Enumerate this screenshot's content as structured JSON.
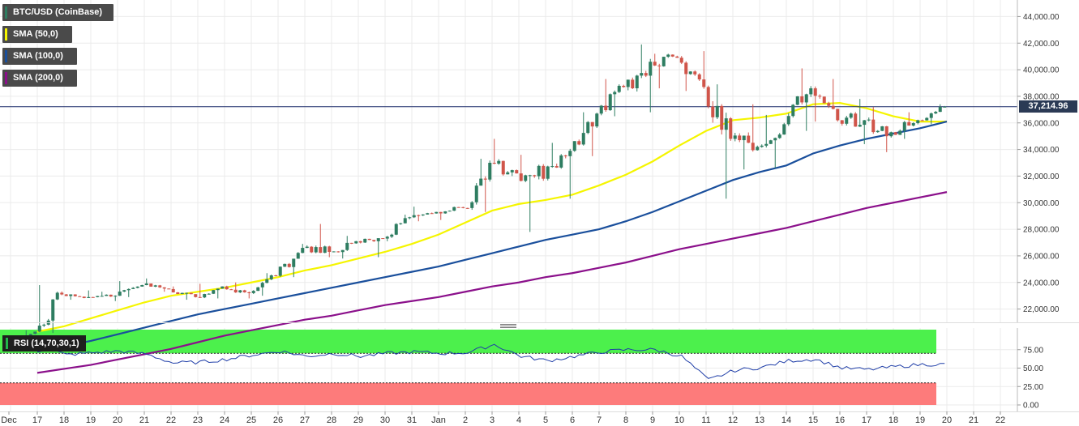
{
  "legend": {
    "main": {
      "label": "BTC/USD (CoinBase)",
      "color": "#2e7d61"
    },
    "sma50": {
      "label": "SMA (50,0)",
      "color": "#f5f500"
    },
    "sma100": {
      "label": "SMA (100,0)",
      "color": "#1a4f9c"
    },
    "sma200": {
      "label": "SMA (200,0)",
      "color": "#8b108b"
    },
    "rsi": {
      "label": "RSI (14,70,30,1)",
      "color": "#21b44a"
    }
  },
  "price_tag": "37,214.96",
  "colors": {
    "up": "#2e7d61",
    "down": "#d0554a",
    "rsi_line": "#1f3ea8",
    "overbought": "#4cf04c",
    "oversold": "#fd7b7b",
    "price_line": "#1f2f6b"
  },
  "chart_data": [
    {
      "type": "candlestick",
      "title": "BTC/USD (CoinBase)",
      "ylim": [
        21000,
        45000
      ],
      "y_ticks": [
        "22,000.00",
        "24,000.00",
        "26,000.00",
        "28,000.00",
        "30,000.00",
        "32,000.00",
        "34,000.00",
        "36,000.00",
        "38,000.00",
        "40,000.00",
        "42,000.00",
        "44,000.00"
      ],
      "x_ticks": [
        "Dec",
        "17",
        "18",
        "19",
        "20",
        "21",
        "22",
        "23",
        "24",
        "25",
        "26",
        "27",
        "28",
        "29",
        "30",
        "31",
        "Jan",
        "2",
        "3",
        "4",
        "5",
        "6",
        "7",
        "8",
        "9",
        "10",
        "11",
        "12",
        "13",
        "14",
        "15",
        "16",
        "17",
        "18",
        "19",
        "20",
        "21",
        "22"
      ],
      "last_price": 37214.96,
      "candles_per_day": 6,
      "daily_ohlc": [
        [
          19400,
          20400,
          19300,
          20300
        ],
        [
          20300,
          23800,
          20200,
          23100
        ],
        [
          23100,
          23400,
          22700,
          22900
        ],
        [
          22900,
          23300,
          22600,
          23000
        ],
        [
          23000,
          24100,
          22900,
          23800
        ],
        [
          23800,
          24300,
          23300,
          23500
        ],
        [
          23500,
          23700,
          22700,
          22900
        ],
        [
          22900,
          23900,
          22800,
          23700
        ],
        [
          23700,
          24000,
          22800,
          23200
        ],
        [
          23200,
          24700,
          23000,
          24500
        ],
        [
          24500,
          26900,
          24400,
          26600
        ],
        [
          26600,
          28400,
          25900,
          26300
        ],
        [
          26300,
          27500,
          25800,
          27100
        ],
        [
          27100,
          27300,
          25900,
          27300
        ],
        [
          27300,
          29100,
          27100,
          28900
        ],
        [
          28900,
          29700,
          28600,
          29300
        ],
        [
          29300,
          29700,
          28700,
          29600
        ],
        [
          29600,
          33300,
          29300,
          33000
        ],
        [
          33000,
          34800,
          32000,
          32200
        ],
        [
          32200,
          33600,
          27800,
          31800
        ],
        [
          31800,
          34500,
          30300,
          33900
        ],
        [
          33900,
          36800,
          33500,
          36700
        ],
        [
          36700,
          39300,
          36500,
          38700
        ],
        [
          38700,
          41900,
          36800,
          40600
        ],
        [
          40600,
          41200,
          38600,
          40900
        ],
        [
          40900,
          41400,
          38400,
          38700
        ],
        [
          38700,
          38900,
          30300,
          34800
        ],
        [
          34800,
          37400,
          32500,
          34200
        ],
        [
          34200,
          36600,
          32600,
          35900
        ],
        [
          35900,
          40100,
          35400,
          38600
        ],
        [
          38600,
          39300,
          36100,
          36200
        ],
        [
          36200,
          37800,
          34400,
          36200
        ],
        [
          36200,
          37200,
          33800,
          35300
        ],
        [
          35300,
          36800,
          34800,
          36200
        ],
        [
          36200,
          37400,
          35900,
          37215
        ]
      ],
      "sma_series": [
        {
          "name": "SMA (50,0)",
          "values": [
            20300,
            20700,
            21300,
            21900,
            22500,
            23000,
            23300,
            23600,
            24000,
            24400,
            24900,
            25300,
            25800,
            26300,
            26900,
            27600,
            28500,
            29400,
            29900,
            30200,
            30600,
            31300,
            32100,
            33100,
            34300,
            35400,
            36200,
            36400,
            36700,
            37400,
            37500,
            37100,
            36500,
            36100,
            36100
          ]
        },
        {
          "name": "SMA (100,0)",
          "values": [
            18800,
            19200,
            19600,
            20100,
            20600,
            21100,
            21600,
            22000,
            22400,
            22800,
            23200,
            23600,
            24000,
            24400,
            24800,
            25200,
            25700,
            26200,
            26700,
            27200,
            27600,
            28000,
            28600,
            29300,
            30100,
            30900,
            31700,
            32300,
            32800,
            33700,
            34300,
            34800,
            35200,
            35600,
            36100
          ]
        },
        {
          "name": "SMA (200,0)",
          "values": [
            17200,
            17500,
            17800,
            18200,
            18600,
            19000,
            19500,
            20000,
            20400,
            20800,
            21200,
            21500,
            21900,
            22300,
            22600,
            22900,
            23300,
            23700,
            24000,
            24400,
            24700,
            25100,
            25500,
            26000,
            26500,
            26900,
            27300,
            27700,
            28100,
            28600,
            29100,
            29600,
            30000,
            30400,
            30800
          ]
        }
      ]
    },
    {
      "type": "line",
      "title": "RSI (14,70,30,1)",
      "ylim": [
        0,
        100
      ],
      "y_ticks": [
        "0.00",
        "25.00",
        "50.00",
        "75.00"
      ],
      "overbought": 70,
      "oversold": 30,
      "values": [
        77,
        80,
        68,
        71,
        73,
        69,
        57,
        58,
        62,
        68,
        73,
        66,
        70,
        66,
        70,
        72,
        70,
        71,
        82,
        66,
        60,
        66,
        72,
        75,
        75,
        66,
        34,
        47,
        51,
        60,
        62,
        50,
        48,
        52,
        55
      ]
    }
  ]
}
